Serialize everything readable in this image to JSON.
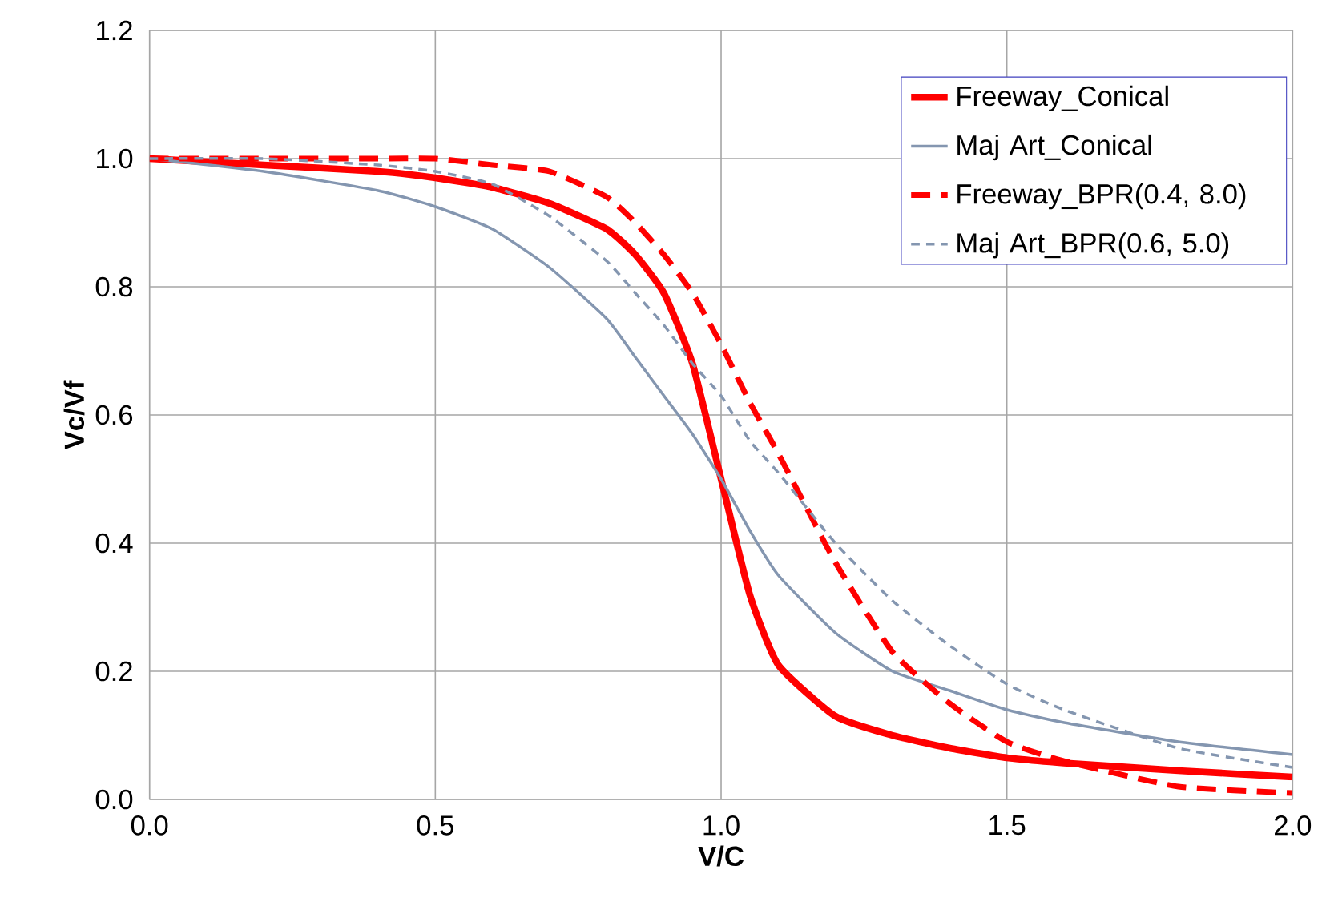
{
  "chart_data": {
    "type": "line",
    "xlabel": "V/C",
    "ylabel": "Vc/Vf",
    "xlim": [
      0,
      2
    ],
    "ylim": [
      0,
      1.2
    ],
    "xticks": [
      {
        "value": 0,
        "label": "0.0"
      },
      {
        "value": 0.5,
        "label": "0.5"
      },
      {
        "value": 1,
        "label": "1.0"
      },
      {
        "value": 1.5,
        "label": "1.5"
      },
      {
        "value": 2,
        "label": "2.0"
      }
    ],
    "yticks": [
      {
        "value": 0,
        "label": "0.0"
      },
      {
        "value": 0.2,
        "label": "0.2"
      },
      {
        "value": 0.4,
        "label": "0.4"
      },
      {
        "value": 0.6,
        "label": "0.6"
      },
      {
        "value": 0.8,
        "label": "0.8"
      },
      {
        "value": 1,
        "label": "1.0"
      },
      {
        "value": 1.2,
        "label": "1.2"
      }
    ],
    "grid": true,
    "legend": "top right",
    "marker": "none",
    "x": [
      0,
      0.2,
      0.4,
      0.5,
      0.6,
      0.7,
      0.8,
      0.85,
      0.9,
      0.95,
      1.0,
      1.05,
      1.1,
      1.2,
      1.3,
      1.4,
      1.5,
      1.6,
      1.8,
      2.0
    ],
    "series": [
      {
        "name": "Freeway_Conical",
        "color": "#ff0000",
        "line_style": "solid",
        "values": [
          1.0,
          0.99,
          0.98,
          0.97,
          0.955,
          0.93,
          0.89,
          0.85,
          0.79,
          0.68,
          0.5,
          0.32,
          0.21,
          0.13,
          0.1,
          0.08,
          0.065,
          0.057,
          0.045,
          0.035
        ]
      },
      {
        "name": "Maj Art_Conical",
        "color": "#8496b0",
        "line_style": "solid",
        "values": [
          1.0,
          0.98,
          0.95,
          0.925,
          0.89,
          0.83,
          0.75,
          0.69,
          0.63,
          0.57,
          0.5,
          0.42,
          0.35,
          0.26,
          0.2,
          0.17,
          0.14,
          0.12,
          0.09,
          0.07
        ]
      },
      {
        "name": "Freeway_BPR(0.4, 8.0)",
        "color": "#ff0000",
        "line_style": "dashed",
        "values": [
          1.0,
          1.0,
          1.0,
          1.0,
          0.99,
          0.98,
          0.94,
          0.9,
          0.85,
          0.79,
          0.71,
          0.62,
          0.54,
          0.37,
          0.23,
          0.15,
          0.09,
          0.06,
          0.02,
          0.01
        ]
      },
      {
        "name": "Maj Art_BPR(0.6, 5.0)",
        "color": "#8496b0",
        "line_style": "dashed",
        "values": [
          1.0,
          1.0,
          0.99,
          0.98,
          0.96,
          0.91,
          0.84,
          0.79,
          0.74,
          0.68,
          0.63,
          0.56,
          0.51,
          0.4,
          0.31,
          0.24,
          0.18,
          0.14,
          0.08,
          0.05
        ]
      }
    ]
  }
}
